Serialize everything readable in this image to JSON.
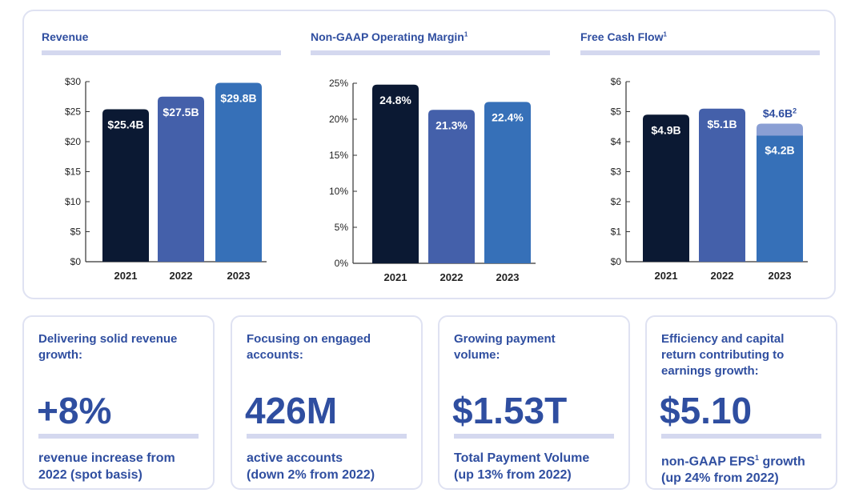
{
  "colors": {
    "dark": "#0b1933",
    "mid": "#4460aa",
    "blue": "#3670b8",
    "light": "#8a9fd4",
    "title": "#2f4ea0"
  },
  "chart_data": [
    {
      "type": "bar",
      "title": "Revenue",
      "categories": [
        "2021",
        "2022",
        "2023"
      ],
      "values": [
        25.4,
        27.5,
        29.8
      ],
      "labels": [
        "$25.4B",
        "$27.5B",
        "$29.8B"
      ],
      "ylim": [
        0,
        30
      ],
      "yticks": [
        "$0",
        "$5",
        "$10",
        "$15",
        "$20",
        "$25",
        "$30"
      ],
      "grid": false
    },
    {
      "type": "bar",
      "title": "Non-GAAP Operating Margin",
      "title_sup": "1",
      "categories": [
        "2021",
        "2022",
        "2023"
      ],
      "values": [
        24.8,
        21.3,
        22.4
      ],
      "labels": [
        "24.8%",
        "21.3%",
        "22.4%"
      ],
      "ylim": [
        0,
        25
      ],
      "yticks": [
        "0%",
        "5%",
        "10%",
        "15%",
        "20%",
        "25%"
      ],
      "grid": false
    },
    {
      "type": "bar",
      "title": "Free Cash Flow",
      "title_sup": "1",
      "categories": [
        "2021",
        "2022",
        "2023"
      ],
      "values": [
        4.9,
        5.1,
        4.2
      ],
      "labels": [
        "$4.9B",
        "$5.1B",
        "$4.2B"
      ],
      "stacked_extra": {
        "category": "2023",
        "total": 4.6,
        "label": "$4.6B",
        "label_sup": "2"
      },
      "ylim": [
        0,
        6
      ],
      "yticks": [
        "$0",
        "$1",
        "$2",
        "$3",
        "$4",
        "$5",
        "$6"
      ],
      "grid": false
    }
  ],
  "cards": [
    {
      "heading": "Delivering solid revenue growth:",
      "value": "+8%",
      "desc1": "revenue increase from",
      "desc2": "2022 (spot basis)"
    },
    {
      "heading": "Focusing on engaged accounts:",
      "value": "426M",
      "desc1": "active accounts",
      "desc2": "(down 2% from 2022)"
    },
    {
      "heading": "Growing payment volume:",
      "value": "$1.53T",
      "desc1": "Total Payment Volume",
      "desc2": "(up 13% from 2022)"
    },
    {
      "heading": "Efficiency and capital return contributing to earnings growth:",
      "value": "$5.10",
      "desc1": "non-GAAP EPS",
      "desc1_sup": "1",
      "desc1_b": " growth",
      "desc2": "(up 24% from 2022)"
    }
  ]
}
